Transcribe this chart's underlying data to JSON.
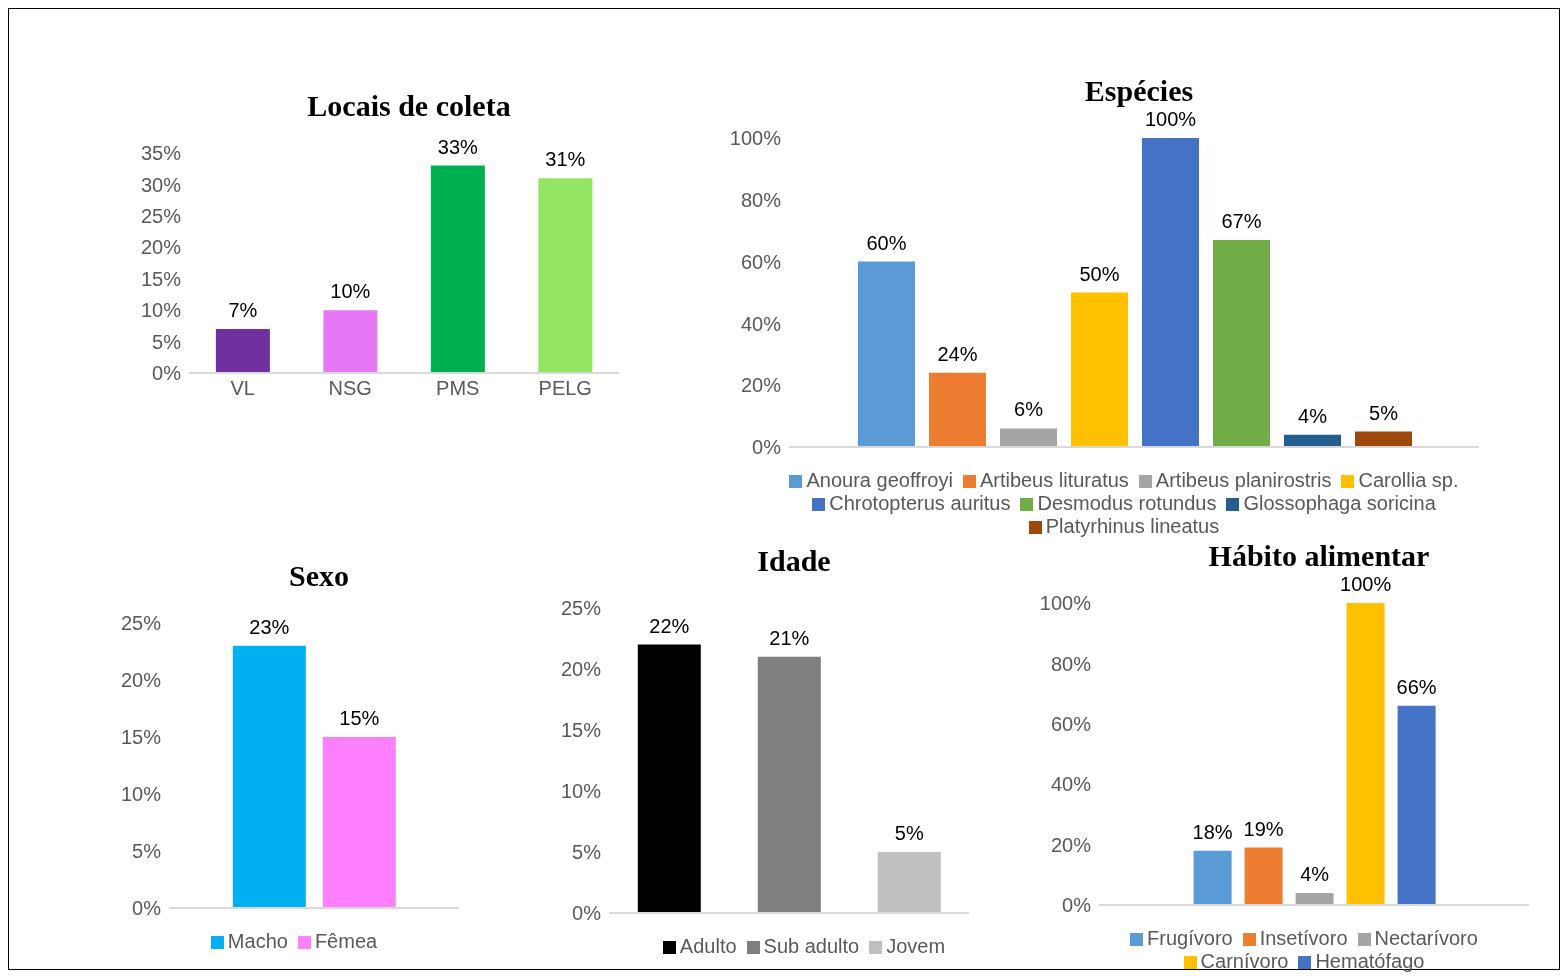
{
  "chart_data": [
    {
      "type": "bar",
      "title": "Locais de coleta",
      "categories": [
        "VL",
        "NSG",
        "PMS",
        "PELG"
      ],
      "values": [
        7,
        10,
        33,
        31
      ],
      "colors": [
        "#7030a0",
        "#e678f8",
        "#00b050",
        "#92e462"
      ],
      "value_labels": [
        "7%",
        "10%",
        "33%",
        "31%"
      ],
      "ylim": [
        0,
        35
      ],
      "yticks": [
        {
          "value": 0,
          "label": "0%"
        },
        {
          "value": 5,
          "label": "5%"
        },
        {
          "value": 10,
          "label": "10%"
        },
        {
          "value": 15,
          "label": "15%"
        },
        {
          "value": 20,
          "label": "20%"
        },
        {
          "value": 25,
          "label": "25%"
        },
        {
          "value": 30,
          "label": "30%"
        },
        {
          "value": 35,
          "label": "35%"
        }
      ]
    },
    {
      "type": "bar",
      "title": "Espécies",
      "categories": [
        null
      ],
      "series": [
        {
          "name": "Anoura geoffroyi",
          "color": "#5b9bd5",
          "values": [
            60
          ],
          "value_labels": [
            "60%"
          ]
        },
        {
          "name": "Artibeus lituratus",
          "color": "#ed7d31",
          "values": [
            24
          ],
          "value_labels": [
            "24%"
          ]
        },
        {
          "name": "Artibeus planirostris",
          "color": "#a5a5a5",
          "values": [
            6
          ],
          "value_labels": [
            "6%"
          ]
        },
        {
          "name": "Carollia sp.",
          "color": "#ffc000",
          "values": [
            50
          ],
          "value_labels": [
            "50%"
          ]
        },
        {
          "name": "Chrotopterus auritus",
          "color": "#4472c4",
          "values": [
            100
          ],
          "value_labels": [
            "100%"
          ]
        },
        {
          "name": "Desmodus rotundus",
          "color": "#70ad47",
          "values": [
            67
          ],
          "value_labels": [
            "67%"
          ]
        },
        {
          "name": "Glossophaga soricina",
          "color": "#255e91",
          "values": [
            4
          ],
          "value_labels": [
            "4%"
          ]
        },
        {
          "name": "Platyrhinus lineatus",
          "color": "#9e480e",
          "values": [
            5
          ],
          "value_labels": [
            "5%"
          ]
        }
      ],
      "ylim": [
        0,
        100
      ],
      "yticks": [
        {
          "value": 0,
          "label": "0%"
        },
        {
          "value": 20,
          "label": "20%"
        },
        {
          "value": 40,
          "label": "40%"
        },
        {
          "value": 60,
          "label": "60%"
        },
        {
          "value": 80,
          "label": "80%"
        },
        {
          "value": 100,
          "label": "100%"
        }
      ],
      "tick_labels": "y",
      "legend": "bottom"
    },
    {
      "type": "bar",
      "title": "Sexo",
      "categories": [
        null
      ],
      "series": [
        {
          "name": "Macho",
          "color": "#00b0f0",
          "values": [
            23
          ],
          "value_labels": [
            "23%"
          ]
        },
        {
          "name": "Fêmea",
          "color": "#ff80ff",
          "values": [
            15
          ],
          "value_labels": [
            "15%"
          ]
        }
      ],
      "ylim": [
        0,
        25
      ],
      "yticks": [
        {
          "value": 0,
          "label": "0%"
        },
        {
          "value": 5,
          "label": "5%"
        },
        {
          "value": 10,
          "label": "10%"
        },
        {
          "value": 15,
          "label": "15%"
        },
        {
          "value": 20,
          "label": "20%"
        },
        {
          "value": 25,
          "label": "25%"
        }
      ],
      "tick_labels": "y",
      "legend": "bottom"
    },
    {
      "type": "bar",
      "title": "Idade",
      "categories": [
        null
      ],
      "series": [
        {
          "name": "Adulto",
          "color": "#000000",
          "values": [
            22
          ],
          "value_labels": [
            "22%"
          ]
        },
        {
          "name": "Sub adulto",
          "color": "#7f7f7f",
          "values": [
            21
          ],
          "value_labels": [
            "21%"
          ]
        },
        {
          "name": "Jovem",
          "color": "#bfbfbf",
          "values": [
            5
          ],
          "value_labels": [
            "5%"
          ]
        }
      ],
      "ylim": [
        0,
        25
      ],
      "yticks": [
        {
          "value": 0,
          "label": "0%"
        },
        {
          "value": 5,
          "label": "5%"
        },
        {
          "value": 10,
          "label": "10%"
        },
        {
          "value": 15,
          "label": "15%"
        },
        {
          "value": 20,
          "label": "20%"
        },
        {
          "value": 25,
          "label": "25%"
        }
      ],
      "tick_labels": "y",
      "legend": "bottom"
    },
    {
      "type": "bar",
      "title": "Hábito alimentar",
      "categories": [
        null
      ],
      "series": [
        {
          "name": "Frugívoro",
          "color": "#5b9bd5",
          "values": [
            18
          ],
          "value_labels": [
            "18%"
          ]
        },
        {
          "name": "Insetívoro",
          "color": "#ed7d31",
          "values": [
            19
          ],
          "value_labels": [
            "19%"
          ]
        },
        {
          "name": "Nectarívoro",
          "color": "#a5a5a5",
          "values": [
            4
          ],
          "value_labels": [
            "4%"
          ]
        },
        {
          "name": "Carnívoro",
          "color": "#ffc000",
          "values": [
            100
          ],
          "value_labels": [
            "100%"
          ]
        },
        {
          "name": "Hematófago",
          "color": "#4472c4",
          "values": [
            66
          ],
          "value_labels": [
            "66%"
          ]
        }
      ],
      "ylim": [
        0,
        100
      ],
      "yticks": [
        {
          "value": 0,
          "label": "0%"
        },
        {
          "value": 20,
          "label": "20%"
        },
        {
          "value": 40,
          "label": "40%"
        },
        {
          "value": 60,
          "label": "60%"
        },
        {
          "value": 80,
          "label": "80%"
        },
        {
          "value": 100,
          "label": "100%"
        }
      ],
      "tick_labels": "y",
      "legend": "bottom"
    }
  ]
}
